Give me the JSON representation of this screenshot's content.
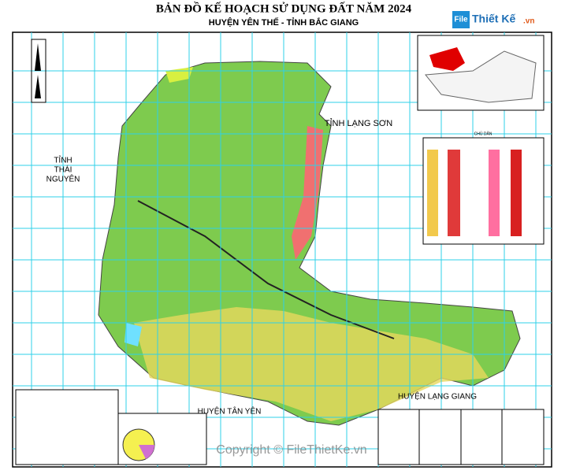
{
  "header": {
    "title": "BẢN ĐỒ KẾ HOẠCH SỬ DỤNG ĐẤT NĂM 2024",
    "subtitle": "HUYỆN YÊN THẾ - TỈNH BẮC GIANG"
  },
  "logo": {
    "brand": "File",
    "text": "Thiết Kế",
    "suffix": ".vn"
  },
  "labels": {
    "lang_son": "TỈNH LẠNG SƠN",
    "thai_nguyen": [
      "TỈNH",
      "THÁI",
      "NGUYÊN"
    ],
    "tan_yen": "HUYỆN TÂN YÊN",
    "lang_giang": "HUYỆN LẠNG GIANG"
  },
  "legend": {
    "title": "CHÚ DẪN"
  },
  "watermark": "Copyright © FileThietKe.vn"
}
